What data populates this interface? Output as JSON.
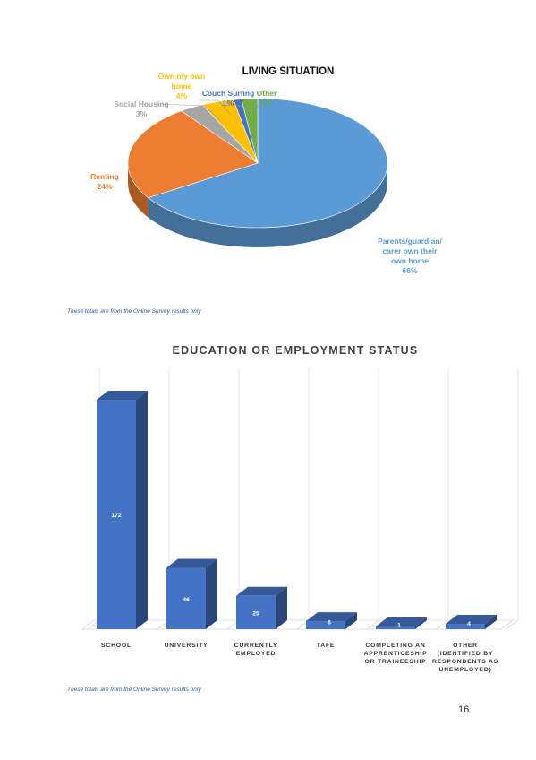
{
  "chart_data": [
    {
      "type": "pie",
      "title": "LIVING SITUATION",
      "slices": [
        {
          "label": "Parents/guardian/ carer own their own home",
          "label_lines": [
            "Parents/guardian/",
            "carer own their",
            "own home"
          ],
          "value": 66,
          "value_text": "66%",
          "color": "#5b9bd5"
        },
        {
          "label": "Renting",
          "label_lines": [
            "Renting"
          ],
          "value": 24,
          "value_text": "24%",
          "color": "#ed7d31"
        },
        {
          "label": "Social Housing",
          "label_lines": [
            "Social Housing"
          ],
          "value": 3,
          "value_text": "3%",
          "color": "#a5a5a5"
        },
        {
          "label": "Own my own home",
          "label_lines": [
            "Own my own",
            "home"
          ],
          "value": 4,
          "value_text": "4%",
          "color": "#ffc000"
        },
        {
          "label": "Couch Surfing",
          "label_lines": [
            "Couch Surfing"
          ],
          "value": 1,
          "value_text": "1%",
          "color": "#4472c4"
        },
        {
          "label": "Other",
          "label_lines": [
            "Other"
          ],
          "value": 2,
          "value_text": "2%",
          "color": "#70ad47"
        }
      ]
    },
    {
      "type": "bar",
      "title": "EDUCATION OR EMPLOYMENT STATUS",
      "categories": [
        [
          "SCHOOL"
        ],
        [
          "UNIVERSITY"
        ],
        [
          "CURRENTLY",
          "EMPLOYED"
        ],
        [
          "TAFE"
        ],
        [
          "COMPLETING AN",
          "APPRENTICESHIP",
          "OR TRAINEESHIP"
        ],
        [
          "OTHER",
          "(IDENTIFIED BY",
          "RESPONDENTS AS",
          "UNEMPLOYED)"
        ]
      ],
      "values": [
        172,
        46,
        25,
        6,
        1,
        4
      ],
      "grid": true,
      "color": "#4472c4"
    }
  ],
  "notes": {
    "pie_note": "These totals are from the Online Survey results only",
    "bar_note": "These totals are from the Online Survey results only"
  },
  "page_number": "16"
}
